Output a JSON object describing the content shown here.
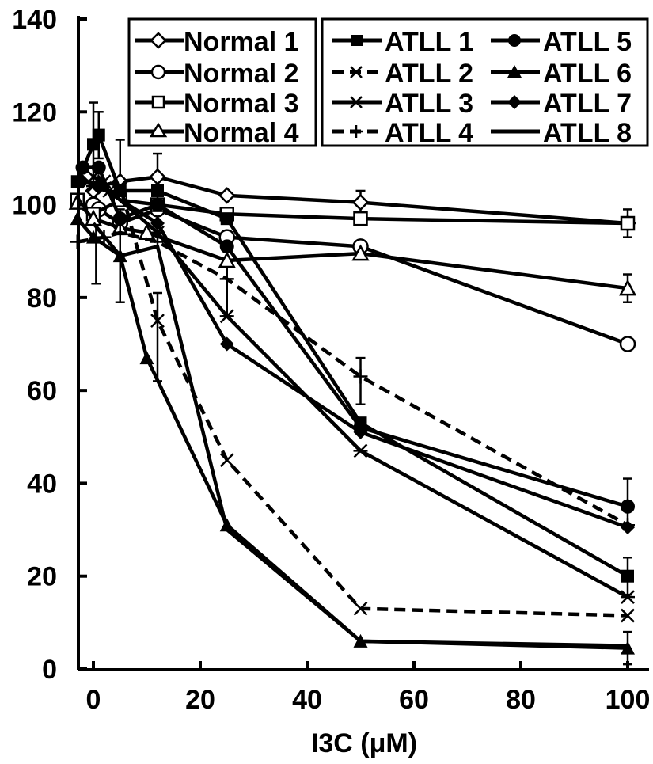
{
  "chart_data": {
    "type": "line",
    "xlabel": "I3C (μM)",
    "ylabel": "",
    "xlim": [
      -3,
      103
    ],
    "ylim": [
      0,
      140
    ],
    "x_ticks": [
      0,
      20,
      40,
      60,
      80,
      100
    ],
    "y_ticks": [
      0,
      20,
      40,
      60,
      80,
      100,
      120,
      140
    ],
    "x": [
      0,
      0.5,
      1,
      5,
      10,
      25,
      50,
      100
    ],
    "grid": false,
    "legend_placement": "top (two boxes: Normal left, ATLL right in two columns)",
    "series": [
      {
        "name": "Normal 1",
        "marker": "diamond-open",
        "points": [
          [
            0,
            103
          ],
          [
            1,
            104
          ],
          [
            5,
            105
          ],
          [
            12,
            106
          ],
          [
            25,
            102
          ],
          [
            50,
            100.5
          ],
          [
            100,
            96
          ]
        ]
      },
      {
        "name": "Normal 2",
        "marker": "circle-open",
        "points": [
          [
            0,
            100
          ],
          [
            1,
            99
          ],
          [
            5,
            96
          ],
          [
            12,
            99
          ],
          [
            25,
            93
          ],
          [
            50,
            91
          ],
          [
            100,
            70
          ]
        ]
      },
      {
        "name": "Normal 3",
        "marker": "square-open",
        "points": [
          [
            -3,
            101
          ],
          [
            0,
            98
          ],
          [
            5,
            101
          ],
          [
            12,
            100
          ],
          [
            25,
            98
          ],
          [
            50,
            97
          ],
          [
            100,
            96
          ]
        ]
      },
      {
        "name": "Normal 4",
        "marker": "triangle-open",
        "points": [
          [
            -3,
            100.5
          ],
          [
            0,
            97
          ],
          [
            5,
            95
          ],
          [
            10,
            94
          ],
          [
            25,
            88
          ],
          [
            50,
            89.5
          ],
          [
            100,
            82
          ]
        ]
      },
      {
        "name": "ATLL 1",
        "marker": "square-filled",
        "points": [
          [
            -3,
            105
          ],
          [
            0,
            113
          ],
          [
            1,
            115
          ],
          [
            5,
            103
          ],
          [
            12,
            103
          ],
          [
            25,
            97
          ],
          [
            50,
            53
          ],
          [
            100,
            20
          ]
        ]
      },
      {
        "name": "ATLL 2",
        "marker": "x",
        "points": [
          [
            0,
            106
          ],
          [
            2,
            105
          ],
          [
            5,
            104
          ],
          [
            12,
            75
          ],
          [
            25,
            45
          ],
          [
            50,
            13
          ],
          [
            100,
            11.5
          ]
        ]
      },
      {
        "name": "ATLL 3",
        "marker": "asterisk",
        "points": [
          [
            0,
            104
          ],
          [
            3,
            103
          ],
          [
            12,
            94
          ],
          [
            25,
            76
          ],
          [
            50,
            47
          ],
          [
            100,
            15.5
          ]
        ]
      },
      {
        "name": "ATLL 4",
        "marker": "plus",
        "points": [
          [
            -3,
            92
          ],
          [
            2,
            93
          ],
          [
            5,
            94
          ],
          [
            12,
            92
          ],
          [
            25,
            84
          ],
          [
            50,
            63
          ],
          [
            100,
            31
          ]
        ]
      },
      {
        "name": "ATLL 5",
        "marker": "circle-filled",
        "points": [
          [
            -2,
            108
          ],
          [
            1,
            108
          ],
          [
            5,
            97
          ],
          [
            12,
            100
          ],
          [
            25,
            91
          ],
          [
            50,
            52
          ],
          [
            100,
            35
          ]
        ]
      },
      {
        "name": "ATLL 6",
        "marker": "triangle-filled",
        "points": [
          [
            -3,
            97
          ],
          [
            0,
            93
          ],
          [
            5,
            89
          ],
          [
            10,
            67
          ],
          [
            25,
            31
          ],
          [
            50,
            6
          ],
          [
            100,
            4.5
          ]
        ]
      },
      {
        "name": "ATLL 7",
        "marker": "diamond-filled",
        "points": [
          [
            -2,
            105
          ],
          [
            1,
            104
          ],
          [
            12,
            96
          ],
          [
            25,
            70
          ],
          [
            50,
            51
          ],
          [
            100,
            30.5
          ]
        ]
      },
      {
        "name": "ATLL 8",
        "marker": "none",
        "points": [
          [
            0,
            96
          ],
          [
            5,
            89
          ],
          [
            12,
            91
          ],
          [
            25,
            30
          ],
          [
            50,
            6
          ],
          [
            100,
            5
          ]
        ]
      }
    ],
    "error_bars": [
      {
        "series": 4,
        "x": 0,
        "lo": 105,
        "hi": 122
      },
      {
        "series": 4,
        "x": 1,
        "lo": 110,
        "hi": 120
      },
      {
        "series": 8,
        "x": 5,
        "lo": 101,
        "hi": 114
      },
      {
        "series": 6,
        "x": 0.5,
        "lo": 83,
        "hi": 103
      },
      {
        "series": 9,
        "x": 5,
        "lo": 79,
        "hi": 99
      },
      {
        "series": 5,
        "x": 12,
        "lo": 62,
        "hi": 81
      },
      {
        "series": 7,
        "x": 25,
        "lo": 76,
        "hi": 92
      },
      {
        "series": 5,
        "x": 50,
        "lo": 57,
        "hi": 67
      },
      {
        "series": 8,
        "x": 100,
        "lo": 30,
        "hi": 41
      },
      {
        "series": 4,
        "x": 100,
        "lo": 16,
        "hi": 24
      },
      {
        "series": 11,
        "x": 100,
        "lo": 1,
        "hi": 8
      },
      {
        "series": 3,
        "x": 100,
        "lo": 79,
        "hi": 85
      },
      {
        "series": 0,
        "x": 12,
        "lo": 101,
        "hi": 111
      },
      {
        "series": 0,
        "x": 50,
        "lo": 98,
        "hi": 103
      },
      {
        "series": 2,
        "x": 100,
        "lo": 93,
        "hi": 99
      }
    ]
  }
}
